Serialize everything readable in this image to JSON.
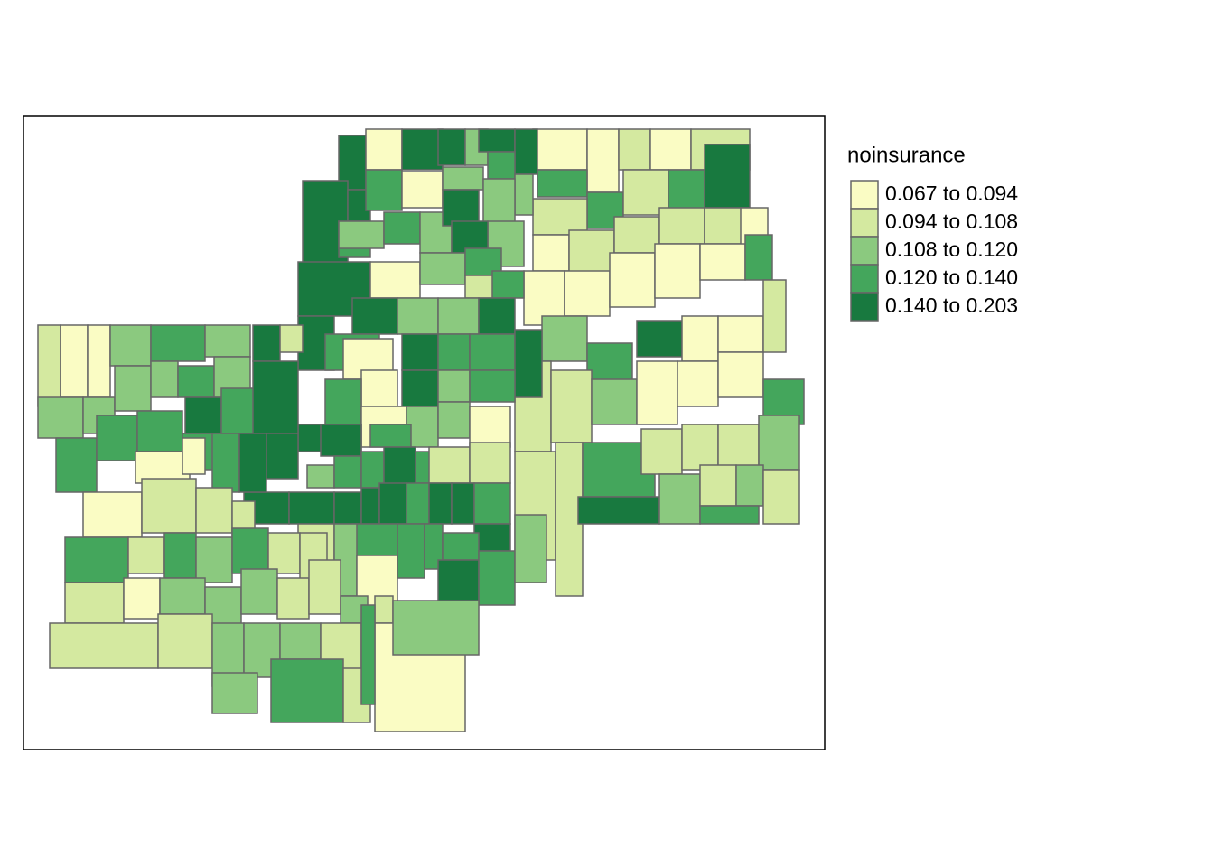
{
  "legend": {
    "title": "noinsurance",
    "items": [
      {
        "label": "0.067 to 0.094",
        "color": "#fafcc4"
      },
      {
        "label": "0.094 to 0.108",
        "color": "#d4e9a0"
      },
      {
        "label": "0.108 to 0.120",
        "color": "#8bc97f"
      },
      {
        "label": "0.120 to 0.140",
        "color": "#44a65c"
      },
      {
        "label": "0.140 to 0.203",
        "color": "#18793f"
      }
    ]
  }
}
